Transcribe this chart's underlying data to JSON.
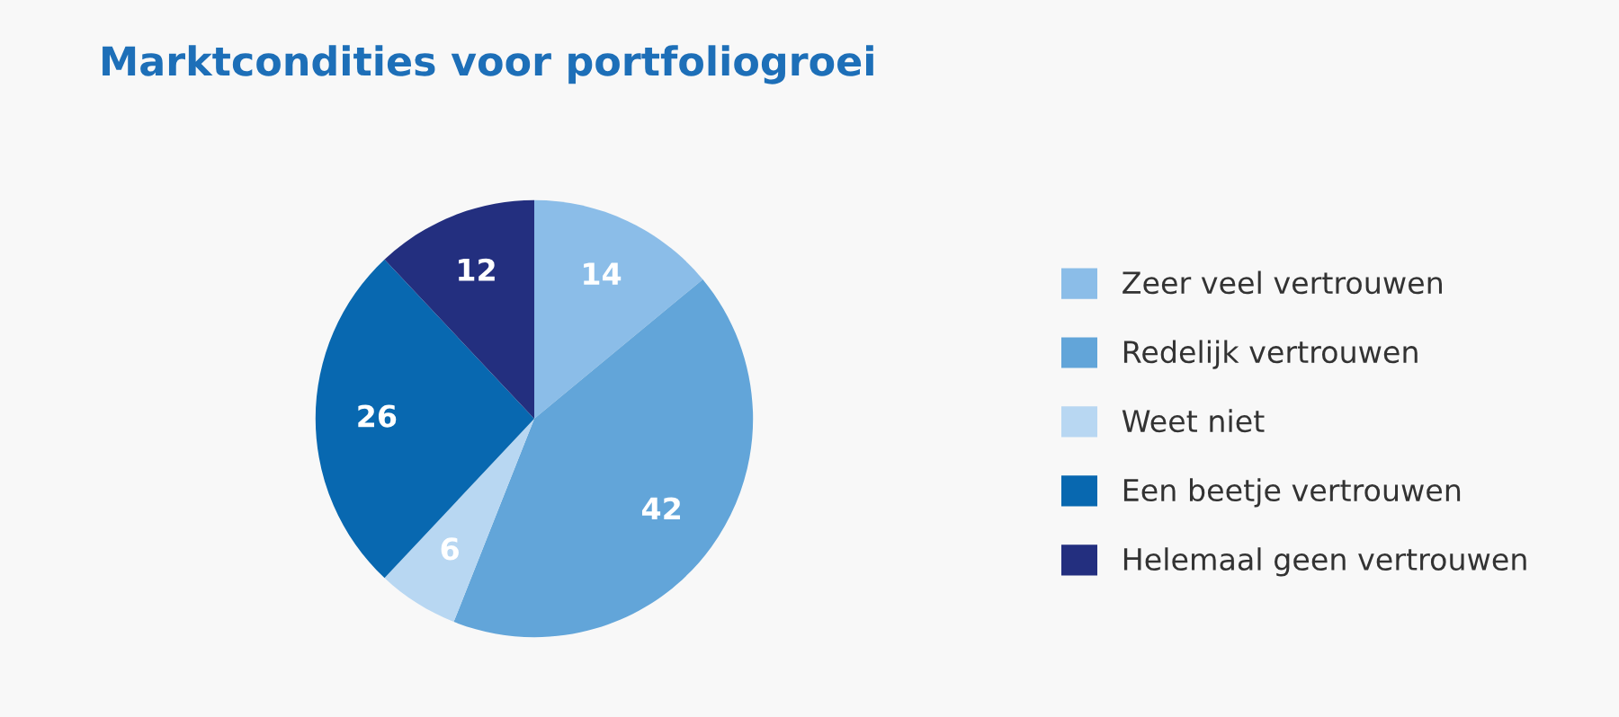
{
  "chart_data": {
    "type": "pie",
    "title": "Marktcondities voor portfoliogroei",
    "categories": [
      "Zeer veel vertrouwen",
      "Redelijk vertrouwen",
      "Weet niet",
      "Een beetje vertrouwen",
      "Helemaal geen vertrouwen"
    ],
    "values": [
      14,
      42,
      6,
      26,
      12
    ],
    "colors": [
      "#8bbde8",
      "#62a5d9",
      "#b8d7f2",
      "#0868b0",
      "#232f7f"
    ],
    "data_labels": true,
    "legend": "right"
  }
}
